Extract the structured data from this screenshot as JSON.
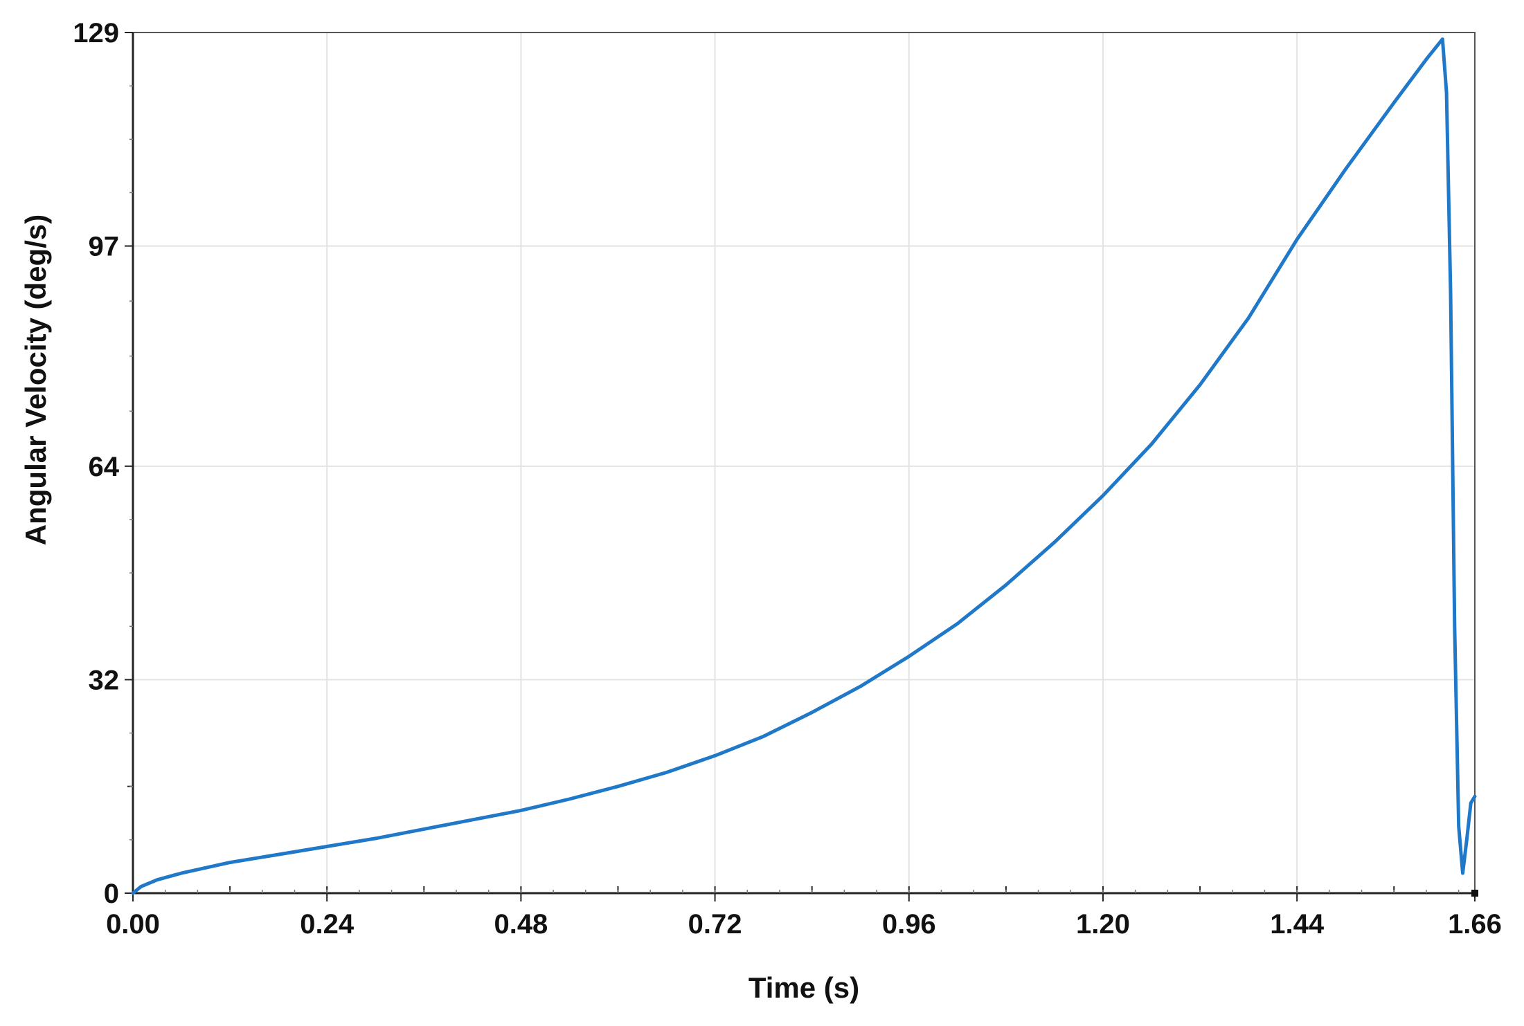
{
  "chart_data": {
    "type": "line",
    "title": "",
    "xlabel": "Time (s)",
    "ylabel": "Angular Velocity (deg/s)",
    "xlim": [
      0.0,
      1.66
    ],
    "ylim": [
      0,
      129
    ],
    "x_ticks": [
      0.0,
      0.24,
      0.48,
      0.72,
      0.96,
      1.2,
      1.44,
      1.66
    ],
    "x_tick_labels": [
      "0.00",
      "0.24",
      "0.48",
      "0.72",
      "0.96",
      "1.20",
      "1.44",
      "1.66"
    ],
    "y_ticks": [
      0,
      32,
      64,
      97,
      129
    ],
    "y_tick_labels": [
      "0",
      "32",
      "64",
      "97",
      "129"
    ],
    "x_minor_step": 0.12,
    "y_minor_ticks": [
      16
    ],
    "grid": true,
    "colors": {
      "line": "#1f78c8",
      "grid": "#e3e3e3",
      "axis": "#222222"
    },
    "series": [
      {
        "x": [
          0.0,
          0.01,
          0.03,
          0.06,
          0.12,
          0.18,
          0.24,
          0.3,
          0.36,
          0.42,
          0.48,
          0.54,
          0.6,
          0.66,
          0.72,
          0.78,
          0.84,
          0.9,
          0.96,
          1.02,
          1.08,
          1.14,
          1.2,
          1.26,
          1.32,
          1.38,
          1.44,
          1.5,
          1.56,
          1.6,
          1.62,
          1.625,
          1.63,
          1.635,
          1.64,
          1.645,
          1.65,
          1.655,
          1.66
        ],
        "y": [
          0,
          1,
          2,
          3,
          4.6,
          5.8,
          7.0,
          8.2,
          9.6,
          11.0,
          12.4,
          14.1,
          16.0,
          18.1,
          20.6,
          23.5,
          27.1,
          31.0,
          35.5,
          40.4,
          46.2,
          52.6,
          59.6,
          67.3,
          76.2,
          86.2,
          98.0,
          108.5,
          118.5,
          125.0,
          128.0,
          120.0,
          90.0,
          40.0,
          10.0,
          3.0,
          8.0,
          13.5,
          14.5
        ]
      }
    ]
  }
}
